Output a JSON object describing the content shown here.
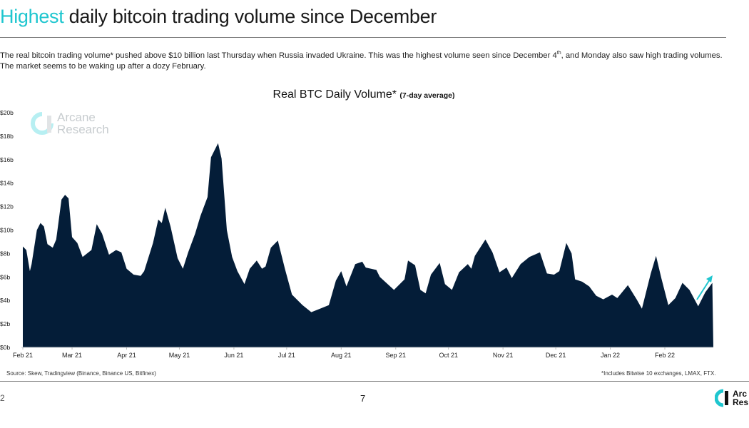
{
  "header": {
    "title_highlight": "Highest",
    "title_rest": " daily bitcoin trading volume since December",
    "paragraph_part1": "The real bitcoin trading volume* pushed above $10 billion last Thursday when Russia invaded Ukraine. This was the highest volume seen since December 4",
    "paragraph_sup": "th",
    "paragraph_part2": ", and Monday also saw high trading volumes. The market seems to be waking up after a dozy February."
  },
  "colors": {
    "accent": "#1fc6cf",
    "area": "#041d38",
    "text": "#1a1a1a"
  },
  "watermark": {
    "line1": "Arcane",
    "line2": "Research"
  },
  "footer": {
    "source": "Source: Skew, Tradingview (Binance, Binance US, Bitfinex)",
    "note": "*Includes Bitwise 10 exchanges, LMAX, FTX.",
    "page_number": "7",
    "left_edge": "2",
    "logo_line1": "Arc",
    "logo_line2": "Res"
  },
  "chart_data": {
    "type": "area",
    "title": "Real BTC Daily Volume*",
    "subtitle": "(7-day average)",
    "xlabel": "",
    "ylabel": "",
    "ylim": [
      0,
      20
    ],
    "xlim": [
      "2021-02-01",
      "2022-02-28"
    ],
    "y_ticks": [
      "$0b",
      "$2b",
      "$4b",
      "$6b",
      "$8b",
      "$10b",
      "$12b",
      "$14b",
      "$16b",
      "$18b",
      "$20b"
    ],
    "x_ticks": [
      {
        "date": "2021-02-01",
        "label": "Feb 21"
      },
      {
        "date": "2021-03-01",
        "label": "Mar 21"
      },
      {
        "date": "2021-04-01",
        "label": "Apr 21"
      },
      {
        "date": "2021-05-01",
        "label": "May 21"
      },
      {
        "date": "2021-06-01",
        "label": "Jun 21"
      },
      {
        "date": "2021-07-01",
        "label": "Jul 21"
      },
      {
        "date": "2021-08-01",
        "label": "Aug 21"
      },
      {
        "date": "2021-09-01",
        "label": "Sep 21"
      },
      {
        "date": "2021-10-01",
        "label": "Oct 21"
      },
      {
        "date": "2021-11-01",
        "label": "Nov 21"
      },
      {
        "date": "2021-12-01",
        "label": "Dec 21"
      },
      {
        "date": "2022-01-01",
        "label": "Jan 22"
      },
      {
        "date": "2022-02-01",
        "label": "Feb 22"
      }
    ],
    "grid": false,
    "annotation": "upward-arrow",
    "x": [
      "2021-02-01",
      "2021-02-03",
      "2021-02-05",
      "2021-02-06",
      "2021-02-09",
      "2021-02-11",
      "2021-02-13",
      "2021-02-15",
      "2021-02-18",
      "2021-02-20",
      "2021-02-23",
      "2021-02-25",
      "2021-02-27",
      "2021-03-01",
      "2021-03-04",
      "2021-03-07",
      "2021-03-12",
      "2021-03-15",
      "2021-03-18",
      "2021-03-22",
      "2021-03-26",
      "2021-03-29",
      "2021-04-01",
      "2021-04-05",
      "2021-04-09",
      "2021-04-11",
      "2021-04-16",
      "2021-04-19",
      "2021-04-21",
      "2021-04-23",
      "2021-04-26",
      "2021-04-30",
      "2021-05-03",
      "2021-05-06",
      "2021-05-10",
      "2021-05-13",
      "2021-05-17",
      "2021-05-19",
      "2021-05-23",
      "2021-05-25",
      "2021-05-28",
      "2021-05-31",
      "2021-06-03",
      "2021-06-07",
      "2021-06-10",
      "2021-06-14",
      "2021-06-17",
      "2021-06-19",
      "2021-06-22",
      "2021-06-26",
      "2021-06-30",
      "2021-07-04",
      "2021-07-10",
      "2021-07-15",
      "2021-07-20",
      "2021-07-25",
      "2021-07-29",
      "2021-08-01",
      "2021-08-04",
      "2021-08-09",
      "2021-08-13",
      "2021-08-15",
      "2021-08-21",
      "2021-08-23",
      "2021-08-31",
      "2021-09-06",
      "2021-09-08",
      "2021-09-12",
      "2021-09-15",
      "2021-09-18",
      "2021-09-21",
      "2021-09-26",
      "2021-09-29",
      "2021-10-03",
      "2021-10-07",
      "2021-10-12",
      "2021-10-14",
      "2021-10-16",
      "2021-10-22",
      "2021-10-26",
      "2021-10-30",
      "2021-11-03",
      "2021-11-06",
      "2021-11-11",
      "2021-11-16",
      "2021-11-22",
      "2021-11-26",
      "2021-11-30",
      "2021-12-03",
      "2021-12-07",
      "2021-12-10",
      "2021-12-12",
      "2021-12-16",
      "2021-12-20",
      "2021-12-24",
      "2021-12-28",
      "2022-01-02",
      "2022-01-05",
      "2022-01-11",
      "2022-01-16",
      "2022-01-19",
      "2022-01-24",
      "2022-01-27",
      "2022-01-30",
      "2022-02-03",
      "2022-02-07",
      "2022-02-11",
      "2022-02-15",
      "2022-02-20",
      "2022-02-24",
      "2022-02-28"
    ],
    "series": [
      {
        "values": [
          8.6,
          8.3,
          6.5,
          7.1,
          10.0,
          10.6,
          10.3,
          8.8,
          8.5,
          9.2,
          12.6,
          13.0,
          12.7,
          9.4,
          8.9,
          7.7,
          8.3,
          10.5,
          9.7,
          7.9,
          8.3,
          8.1,
          6.7,
          6.2,
          6.1,
          6.5,
          8.9,
          10.9,
          10.6,
          11.9,
          10.3,
          7.6,
          6.7,
          8.1,
          9.7,
          11.2,
          12.8,
          16.2,
          17.4,
          16.1,
          10.0,
          7.7,
          6.5,
          5.4,
          6.7,
          7.4,
          6.7,
          6.9,
          8.5,
          9.1,
          6.7,
          4.5,
          3.6,
          3.0,
          3.3,
          3.6,
          5.7,
          6.5,
          5.2,
          7.1,
          7.3,
          6.8,
          6.6,
          6.0,
          4.9,
          5.8,
          7.4,
          7.0,
          4.9,
          4.6,
          6.2,
          7.2,
          5.4,
          4.9,
          6.4,
          7.1,
          6.7,
          7.8,
          9.2,
          8.1,
          6.4,
          6.8,
          5.9,
          7.1,
          7.7,
          8.1,
          6.3,
          6.2,
          6.5,
          8.9,
          8.0,
          5.8,
          5.6,
          5.2,
          4.4,
          4.1,
          4.5,
          4.2,
          5.3,
          4.1,
          3.3,
          6.3,
          7.8,
          5.9,
          3.6,
          4.2,
          5.5,
          4.9,
          3.5,
          4.7,
          5.5
        ]
      }
    ]
  }
}
